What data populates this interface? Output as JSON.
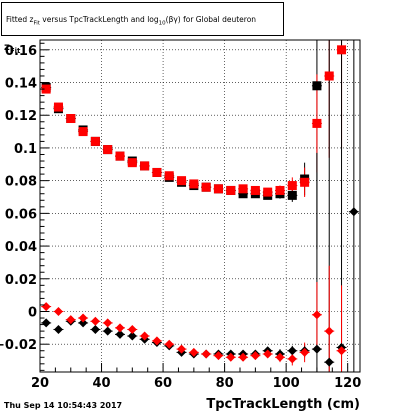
{
  "header": {
    "title_pre": "Fitted  z",
    "title_sub1": "Fit",
    "title_mid": "  versus TpcTrackLength and log",
    "title_sub2": "10",
    "title_post": "(βγ) for Global deuteron"
  },
  "axes": {
    "ylabel_main": "z",
    "ylabel_sub": "Fit",
    "xlabel": "TpcTrackLength (cm)"
  },
  "footer": {
    "timestamp": "Thu Sep 14 10:54:43 2017"
  },
  "chart_data": {
    "type": "scatter",
    "title": "Fitted z_Fit versus TpcTrackLength and log10(βγ) for Global deuteron",
    "xlabel": "TpcTrackLength (cm)",
    "ylabel": "z_Fit",
    "xlim": [
      20,
      124
    ],
    "ylim": [
      -0.037,
      0.166
    ],
    "xticks": [
      20,
      40,
      60,
      80,
      100,
      120
    ],
    "yticks": [
      -0.02,
      0,
      0.02,
      0.04,
      0.06,
      0.08,
      0.1,
      0.12,
      0.14,
      0.16
    ],
    "ytick_labels": [
      "−0.02",
      "0",
      "0.02",
      "0.04",
      "0.06",
      "0.08",
      "0.1",
      "0.12",
      "0.14",
      "0.16"
    ],
    "grid": true,
    "series": [
      {
        "marker": "square",
        "color": "#000000",
        "points": [
          [
            22,
            0.137
          ],
          [
            26,
            0.124
          ],
          [
            30,
            0.118
          ],
          [
            34,
            0.111
          ],
          [
            38,
            0.104
          ],
          [
            42,
            0.099
          ],
          [
            46,
            0.095
          ],
          [
            50,
            0.092
          ],
          [
            54,
            0.089
          ],
          [
            58,
            0.085
          ],
          [
            62,
            0.082
          ],
          [
            66,
            0.079
          ],
          [
            70,
            0.077
          ],
          [
            74,
            0.076
          ],
          [
            78,
            0.075
          ],
          [
            82,
            0.074
          ],
          [
            86,
            0.072
          ],
          [
            90,
            0.072
          ],
          [
            94,
            0.071
          ],
          [
            98,
            0.072
          ],
          [
            102,
            0.071
          ],
          [
            106,
            0.081
          ],
          [
            110,
            0.138
          ]
        ],
        "errors": [
          0.002,
          0.002,
          0.002,
          0.002,
          0.002,
          0.002,
          0.002,
          0.002,
          0.002,
          0.002,
          0.002,
          0.002,
          0.002,
          0.002,
          0.002,
          0.002,
          0.002,
          0.002,
          0.002,
          0.003,
          0.004,
          0.01,
          0.1
        ]
      },
      {
        "marker": "square",
        "color": "#ff0000",
        "points": [
          [
            22,
            0.136
          ],
          [
            26,
            0.125
          ],
          [
            30,
            0.118
          ],
          [
            34,
            0.11
          ],
          [
            38,
            0.104
          ],
          [
            42,
            0.099
          ],
          [
            46,
            0.095
          ],
          [
            50,
            0.091
          ],
          [
            54,
            0.089
          ],
          [
            58,
            0.085
          ],
          [
            62,
            0.083
          ],
          [
            66,
            0.08
          ],
          [
            70,
            0.078
          ],
          [
            74,
            0.076
          ],
          [
            78,
            0.075
          ],
          [
            82,
            0.074
          ],
          [
            86,
            0.075
          ],
          [
            90,
            0.074
          ],
          [
            94,
            0.073
          ],
          [
            98,
            0.074
          ],
          [
            102,
            0.077
          ],
          [
            106,
            0.079
          ],
          [
            110,
            0.115
          ],
          [
            114,
            0.144
          ],
          [
            118,
            0.16
          ]
        ],
        "errors": [
          0.002,
          0.002,
          0.002,
          0.002,
          0.002,
          0.002,
          0.002,
          0.002,
          0.002,
          0.002,
          0.002,
          0.002,
          0.002,
          0.002,
          0.002,
          0.002,
          0.002,
          0.002,
          0.002,
          0.003,
          0.005,
          0.009,
          0.03,
          0.05,
          0.06
        ]
      },
      {
        "marker": "diamond",
        "color": "#000000",
        "points": [
          [
            22,
            -0.007
          ],
          [
            26,
            -0.011
          ],
          [
            30,
            -0.006
          ],
          [
            34,
            -0.007
          ],
          [
            38,
            -0.011
          ],
          [
            42,
            -0.012
          ],
          [
            46,
            -0.014
          ],
          [
            50,
            -0.015
          ],
          [
            54,
            -0.017
          ],
          [
            58,
            -0.019
          ],
          [
            62,
            -0.021
          ],
          [
            66,
            -0.025
          ],
          [
            70,
            -0.026
          ],
          [
            74,
            -0.026
          ],
          [
            78,
            -0.026
          ],
          [
            82,
            -0.026
          ],
          [
            86,
            -0.026
          ],
          [
            90,
            -0.026
          ],
          [
            94,
            -0.024
          ],
          [
            98,
            -0.026
          ],
          [
            102,
            -0.024
          ],
          [
            106,
            -0.024
          ],
          [
            110,
            -0.023
          ],
          [
            114,
            -0.031
          ],
          [
            118,
            -0.022
          ],
          [
            122,
            0.061
          ]
        ],
        "errors": [
          0.002,
          0.002,
          0.002,
          0.002,
          0.002,
          0.002,
          0.002,
          0.002,
          0.002,
          0.002,
          0.002,
          0.002,
          0.002,
          0.002,
          0.002,
          0.002,
          0.002,
          0.002,
          0.002,
          0.003,
          0.003,
          0.004,
          0.12,
          0.2,
          0.2,
          0.2
        ]
      },
      {
        "marker": "diamond",
        "color": "#ff0000",
        "points": [
          [
            22,
            0.003
          ],
          [
            26,
            0.0
          ],
          [
            30,
            -0.005
          ],
          [
            34,
            -0.004
          ],
          [
            38,
            -0.006
          ],
          [
            42,
            -0.007
          ],
          [
            46,
            -0.01
          ],
          [
            50,
            -0.011
          ],
          [
            54,
            -0.015
          ],
          [
            58,
            -0.018
          ],
          [
            62,
            -0.02
          ],
          [
            66,
            -0.023
          ],
          [
            70,
            -0.025
          ],
          [
            74,
            -0.026
          ],
          [
            78,
            -0.027
          ],
          [
            82,
            -0.028
          ],
          [
            86,
            -0.028
          ],
          [
            90,
            -0.027
          ],
          [
            94,
            -0.026
          ],
          [
            98,
            -0.028
          ],
          [
            102,
            -0.029
          ],
          [
            106,
            -0.025
          ],
          [
            110,
            -0.002
          ],
          [
            114,
            -0.012
          ],
          [
            118,
            -0.024
          ]
        ],
        "errors": [
          0.002,
          0.002,
          0.002,
          0.002,
          0.002,
          0.002,
          0.002,
          0.002,
          0.002,
          0.002,
          0.002,
          0.002,
          0.002,
          0.002,
          0.002,
          0.002,
          0.002,
          0.002,
          0.002,
          0.003,
          0.004,
          0.006,
          0.02,
          0.04,
          0.04
        ]
      }
    ]
  }
}
